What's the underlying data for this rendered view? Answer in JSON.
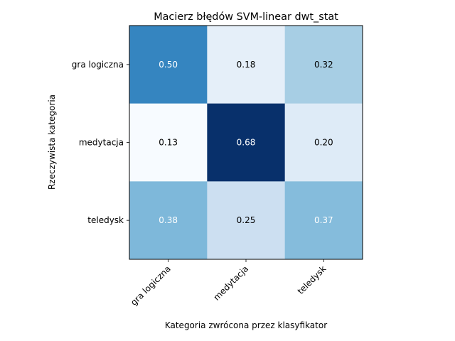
{
  "chart_data": {
    "type": "heatmap",
    "title": "Macierz błędów SVM-linear dwt_stat",
    "xlabel": "Kategoria zwrócona przez klasyfikator",
    "ylabel": "Rzeczywista kategoria",
    "x_categories": [
      "gra logiczna",
      "medytacja",
      "teledysk"
    ],
    "y_categories": [
      "gra logiczna",
      "medytacja",
      "teledysk"
    ],
    "values": [
      [
        0.5,
        0.18,
        0.32
      ],
      [
        0.13,
        0.68,
        0.2
      ],
      [
        0.38,
        0.25,
        0.37
      ]
    ],
    "value_labels": [
      [
        "0.50",
        "0.18",
        "0.32"
      ],
      [
        "0.13",
        "0.68",
        "0.20"
      ],
      [
        "0.38",
        "0.25",
        "0.37"
      ]
    ],
    "colormap": "Blues",
    "colors": {
      "low": "#f7fbff",
      "high": "#08306b",
      "text_dark": "#000000",
      "text_light": "#ffffff"
    }
  }
}
